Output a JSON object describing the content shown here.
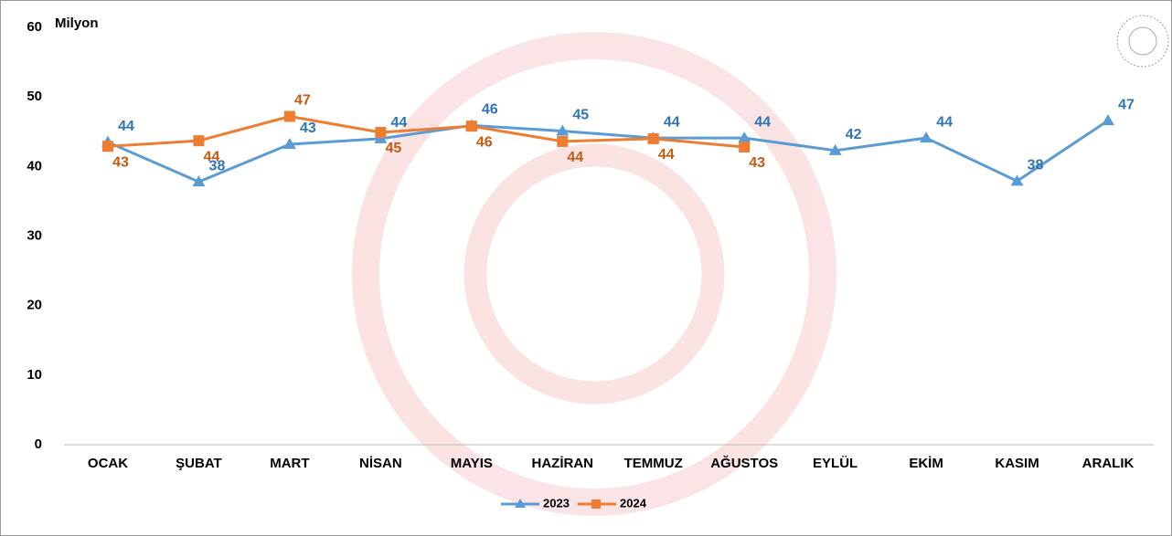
{
  "chart_data": {
    "type": "line",
    "y_label": "Milyon",
    "categories": [
      "OCAK",
      "ŞUBAT",
      "MART",
      "NİSAN",
      "MAYIS",
      "HAZİRAN",
      "TEMMUZ",
      "AĞUSTOS",
      "EYLÜL",
      "EKİM",
      "KASIM",
      "ARALIK"
    ],
    "series": [
      {
        "name": "2023",
        "color": "#5b9bd5",
        "marker": "triangle",
        "values": [
          43.5,
          37.8,
          43.2,
          44.0,
          45.9,
          45.1,
          44.1,
          44.1,
          42.3,
          44.1,
          37.9,
          46.6
        ],
        "value_labels": [
          "44",
          "38",
          "43",
          "44",
          "46",
          "45",
          "44",
          "44",
          "42",
          "44",
          "38",
          "47"
        ]
      },
      {
        "name": "2024",
        "color": "#ed7d31",
        "marker": "square",
        "values": [
          42.9,
          43.7,
          47.2,
          44.9,
          45.8,
          43.6,
          44.0,
          42.8,
          null,
          null,
          null,
          null
        ],
        "value_labels": [
          "43",
          "44",
          "47",
          "45",
          "46",
          "44",
          "44",
          "43",
          null,
          null,
          null,
          null
        ]
      }
    ],
    "ylim": [
      0,
      60
    ],
    "yticks": [
      0,
      10,
      20,
      30,
      40,
      50,
      60
    ],
    "grid": false,
    "legend": "bottom"
  }
}
